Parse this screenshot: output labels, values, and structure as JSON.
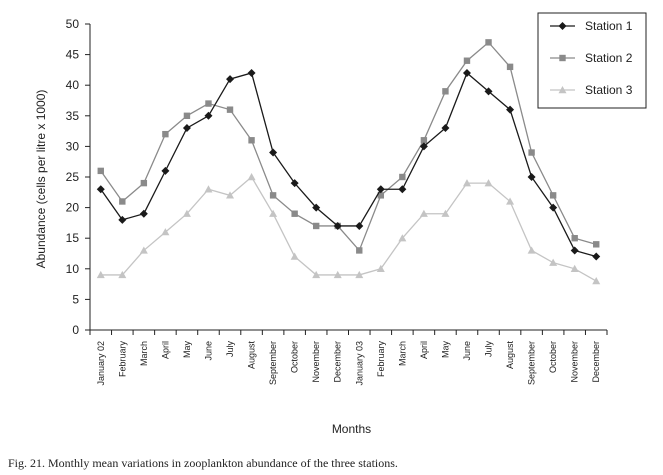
{
  "caption": "Fig. 21. Monthly mean variations in zooplankton abundance of the three stations.",
  "chart_data": {
    "type": "line",
    "title": "",
    "xlabel": "Months",
    "ylabel": "Abundance (cells per litre x 1000)",
    "ylim": [
      0,
      50
    ],
    "yticks": [
      0,
      5,
      10,
      15,
      20,
      25,
      30,
      35,
      40,
      45,
      50
    ],
    "grid": false,
    "legend_position": "top-right",
    "categories": [
      "January 02",
      "February",
      "March",
      "April",
      "May",
      "June",
      "July",
      "August",
      "September",
      "October",
      "November",
      "December",
      "January 03",
      "February",
      "March",
      "April",
      "May",
      "June",
      "July",
      "August",
      "September",
      "October",
      "November",
      "December"
    ],
    "series": [
      {
        "name": "Station 1",
        "color": "#1a1a1a",
        "marker": "diamond",
        "values": [
          23,
          18,
          19,
          26,
          33,
          35,
          41,
          42,
          29,
          24,
          20,
          17,
          17,
          23,
          23,
          30,
          33,
          42,
          39,
          36,
          25,
          20,
          13,
          12
        ]
      },
      {
        "name": "Station 2",
        "color": "#8a8a8a",
        "marker": "square",
        "values": [
          26,
          21,
          24,
          32,
          35,
          37,
          36,
          31,
          22,
          19,
          17,
          17,
          13,
          22,
          25,
          31,
          39,
          44,
          47,
          43,
          29,
          22,
          15,
          14
        ]
      },
      {
        "name": "Station 3",
        "color": "#c4c4c4",
        "marker": "triangle",
        "values": [
          9,
          9,
          13,
          16,
          19,
          23,
          22,
          25,
          19,
          12,
          9,
          9,
          9,
          10,
          15,
          19,
          19,
          24,
          24,
          21,
          13,
          11,
          10,
          8
        ]
      }
    ]
  }
}
